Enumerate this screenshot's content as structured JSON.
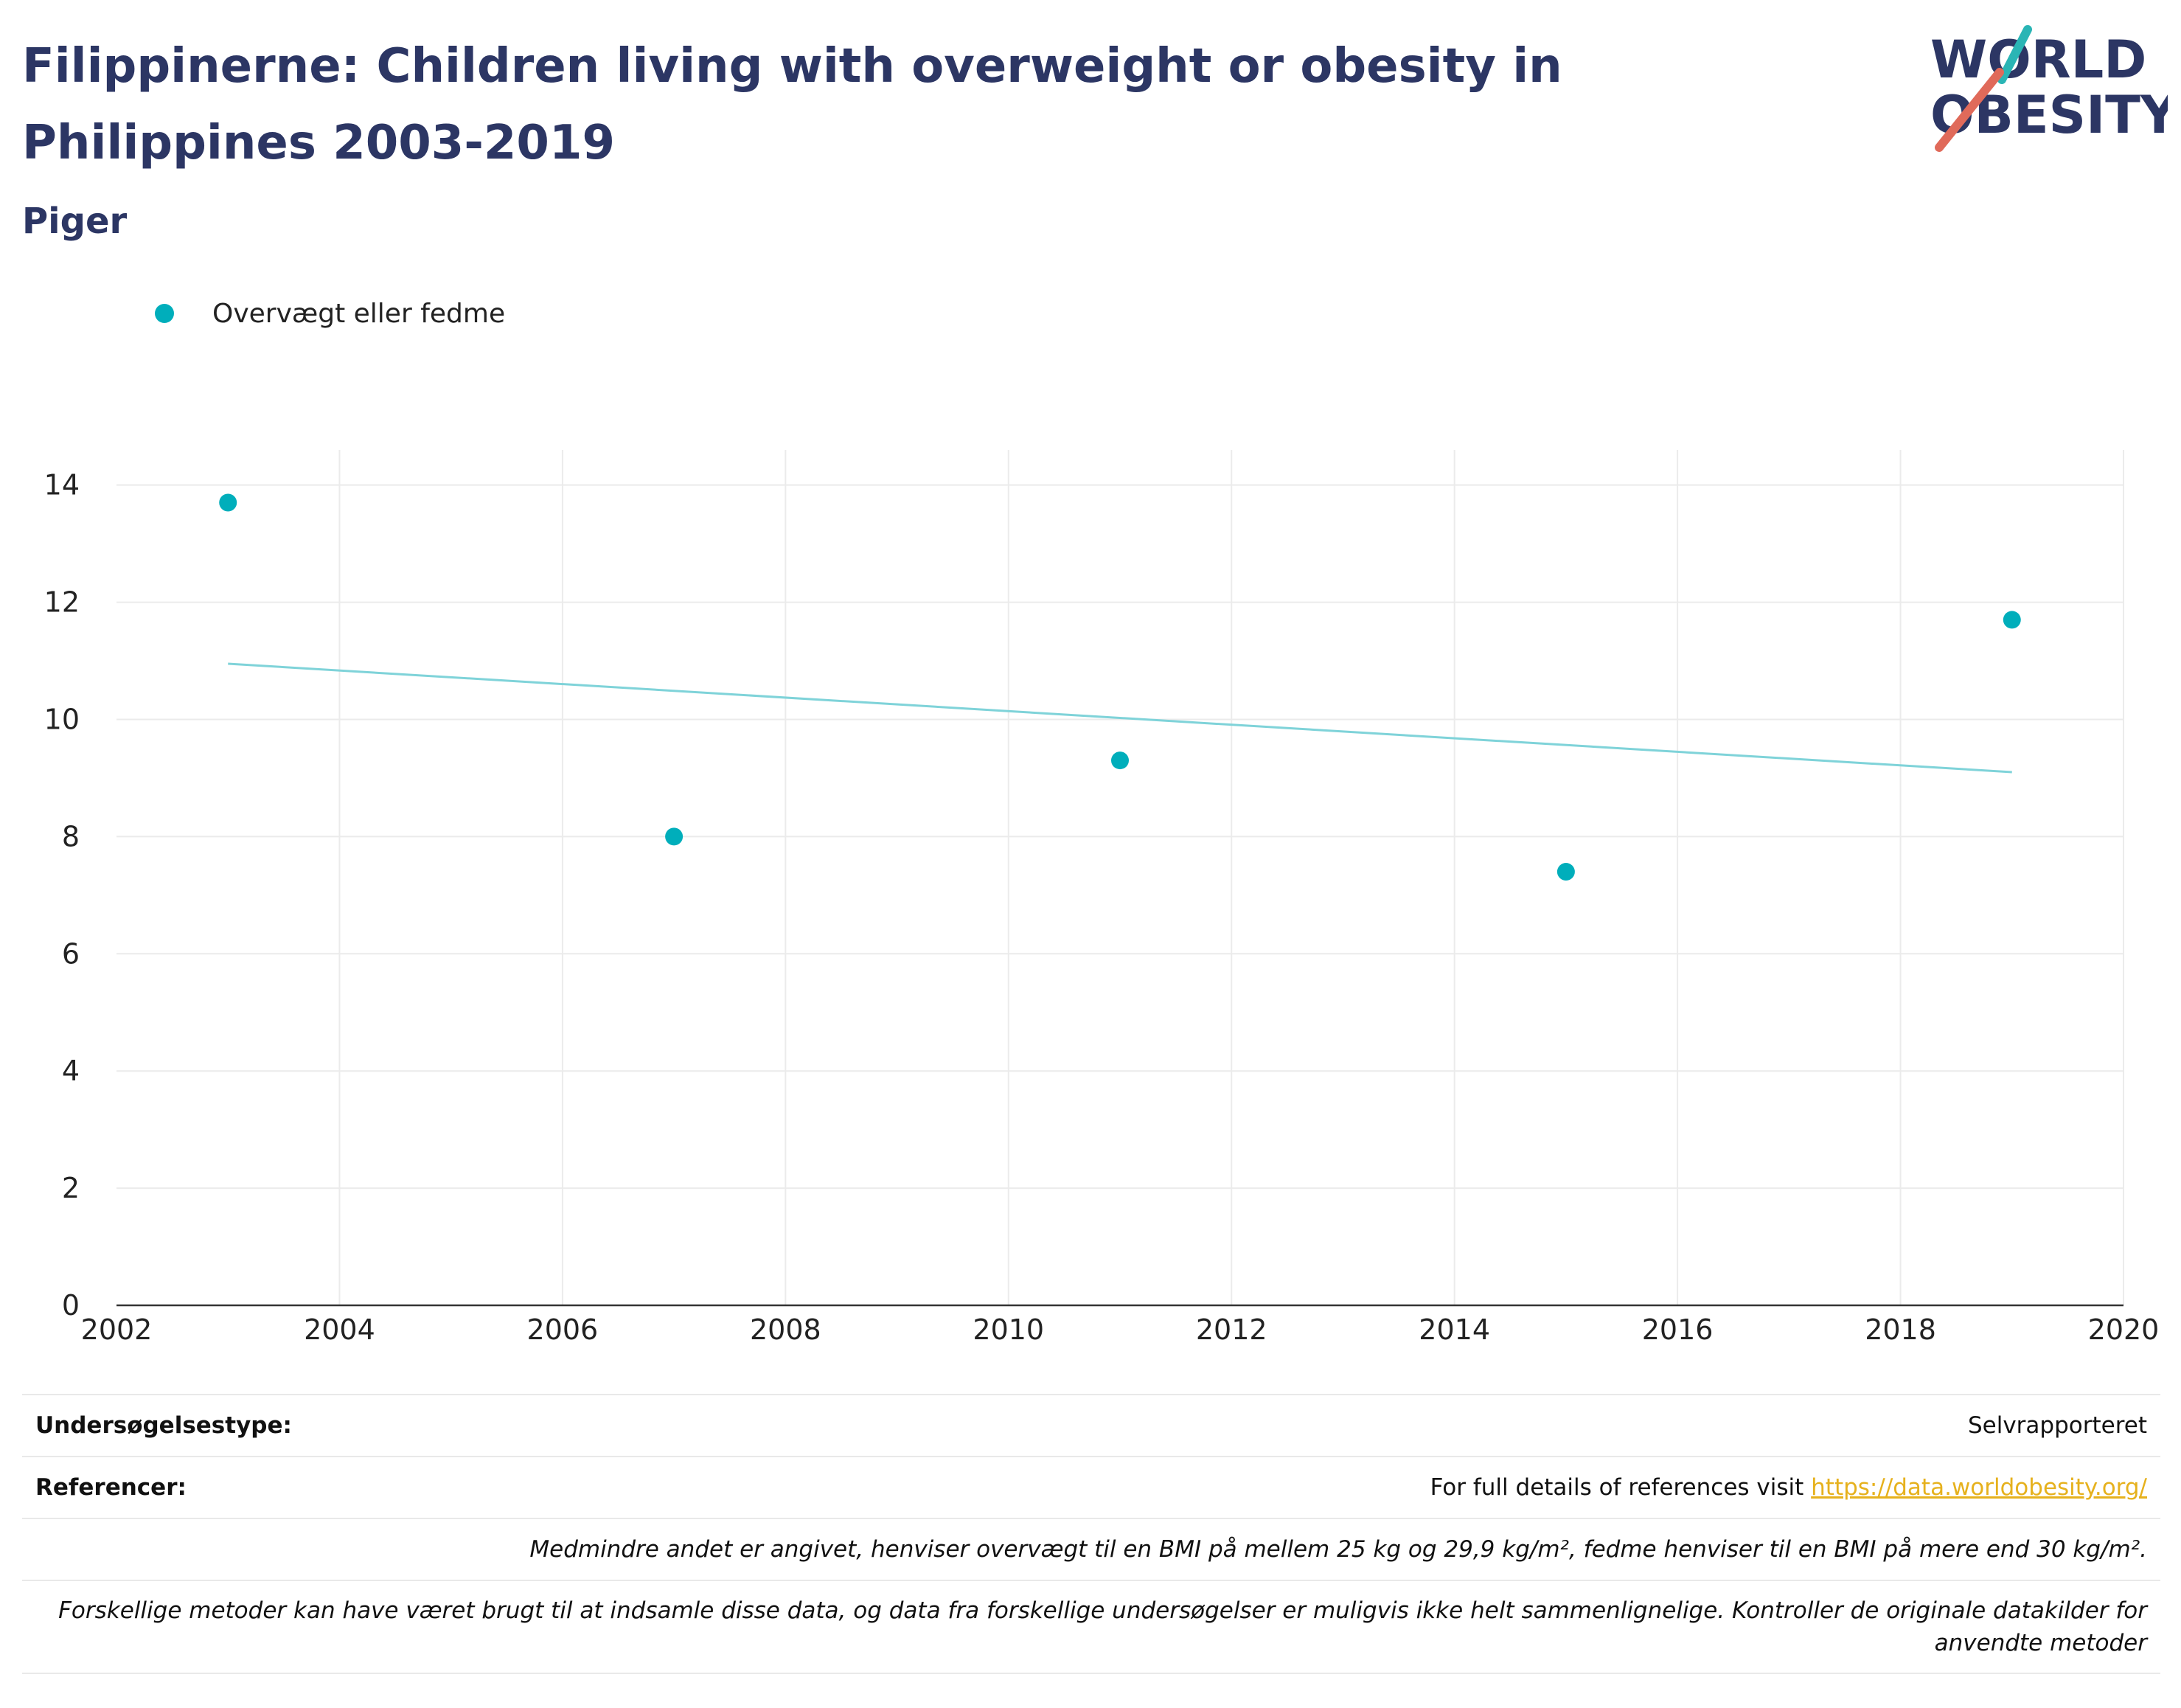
{
  "header": {
    "title": "Filippinerne: Children living with overweight or obesity in Philippines 2003-2019",
    "subtitle": "Piger"
  },
  "logo": {
    "line1": "WORLD",
    "line2": "OBESITY",
    "colors": {
      "text": "#2c3664",
      "teal_slash": "#2ab5b5",
      "red_slash": "#e06a5a"
    }
  },
  "chart_data": {
    "type": "scatter",
    "series": [
      {
        "name": "Overvægt eller fedme",
        "color": "#00aebb",
        "x": [
          2003,
          2007,
          2011,
          2015,
          2019
        ],
        "y": [
          13.7,
          8.0,
          9.3,
          7.4,
          11.7
        ]
      }
    ],
    "trendline": {
      "x": [
        2003,
        2019
      ],
      "y": [
        10.95,
        9.1
      ],
      "color": "#7fd3d9"
    },
    "xlim": [
      2002,
      2020
    ],
    "ylim": [
      0,
      14.6
    ],
    "xticks": [
      2002,
      2004,
      2006,
      2008,
      2010,
      2012,
      2014,
      2016,
      2018,
      2020
    ],
    "yticks": [
      0,
      2,
      4,
      6,
      8,
      10,
      12,
      14
    ],
    "grid": true,
    "legend_position": "top-left"
  },
  "footer": {
    "survey_type_label": "Undersøgelsestype:",
    "survey_type_value": "Selvrapporteret",
    "references_label": "Referencer:",
    "references_text": "For full details of references visit ",
    "references_link": "https://data.worldobesity.org/",
    "note1": "Medmindre andet er angivet, henviser overvægt til en BMI på mellem 25 kg og 29,9 kg/m², fedme henviser til en BMI på mere end 30 kg/m².",
    "note2": "Forskellige metoder kan have været brugt til at indsamle disse data, og data fra forskellige undersøgelser er muligvis ikke helt sammenlignelige. Kontroller de originale datakilder for anvendte metoder"
  }
}
